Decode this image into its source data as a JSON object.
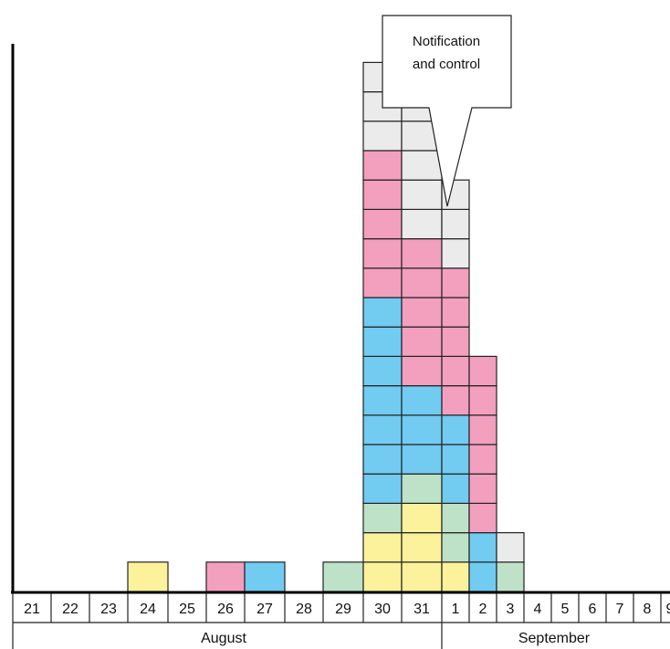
{
  "chart_data": {
    "type": "bar",
    "stacked": true,
    "unit": "one square per case",
    "categories": [
      "21",
      "22",
      "23",
      "24",
      "25",
      "26",
      "27",
      "28",
      "29",
      "30",
      "31",
      "1",
      "2",
      "3",
      "4",
      "5",
      "6",
      "7",
      "8",
      "9"
    ],
    "months": [
      {
        "label": "August",
        "days": [
          "21",
          "22",
          "23",
          "24",
          "25",
          "26",
          "27",
          "28",
          "29",
          "30",
          "31"
        ]
      },
      {
        "label": "September",
        "days": [
          "1",
          "2",
          "3",
          "4",
          "5",
          "6",
          "7",
          "8",
          "9"
        ]
      }
    ],
    "colors": {
      "yellow": "#fdf29c",
      "green": "#bde2c8",
      "blue": "#72cbf0",
      "pink": "#f39fbe",
      "grey": "#ebebeb"
    },
    "stacks": [
      [],
      [],
      [],
      [
        "yellow"
      ],
      [],
      [
        "pink"
      ],
      [
        "blue"
      ],
      [],
      [
        "green"
      ],
      [
        "yellow",
        "yellow",
        "green",
        "blue",
        "blue",
        "blue",
        "blue",
        "blue",
        "blue",
        "blue",
        "pink",
        "pink",
        "pink",
        "pink",
        "pink",
        "grey",
        "grey",
        "grey"
      ],
      [
        "yellow",
        "yellow",
        "yellow",
        "green",
        "blue",
        "blue",
        "blue",
        "pink",
        "pink",
        "pink",
        "pink",
        "pink",
        "grey",
        "grey",
        "grey",
        "grey",
        "grey",
        "grey"
      ],
      [
        "yellow",
        "green",
        "green",
        "blue",
        "blue",
        "blue",
        "pink",
        "pink",
        "pink",
        "pink",
        "pink",
        "grey",
        "grey",
        "grey"
      ],
      [
        "blue",
        "blue",
        "pink",
        "pink",
        "pink",
        "pink",
        "pink",
        "pink"
      ],
      [
        "green",
        "grey"
      ],
      [],
      [],
      [],
      [],
      [],
      []
    ],
    "counts": [
      0,
      0,
      0,
      1,
      0,
      1,
      1,
      0,
      1,
      18,
      18,
      14,
      8,
      2,
      0,
      0,
      0,
      0,
      0,
      0
    ],
    "callout": {
      "lines": [
        "Notification",
        "and  control"
      ],
      "points_to_day": "1"
    }
  }
}
